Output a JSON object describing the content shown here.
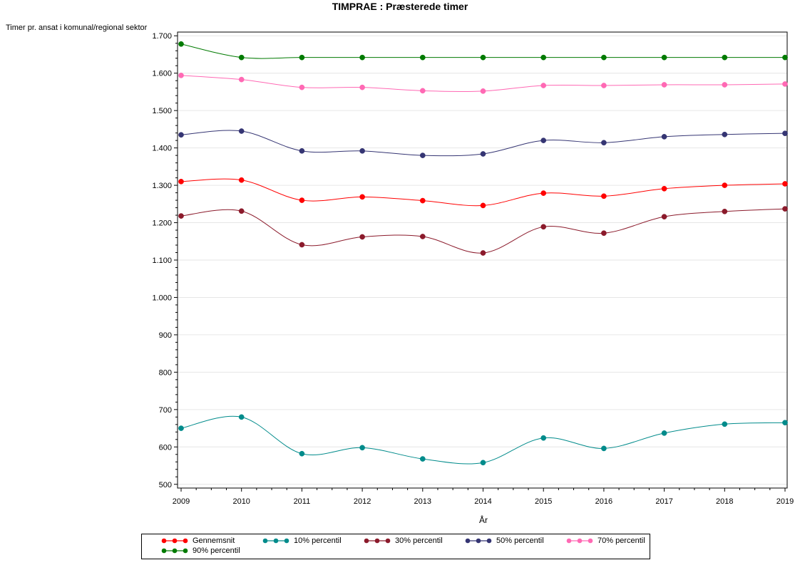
{
  "chart_data": {
    "type": "line",
    "title": "TIMPRAE : Præsterede timer",
    "xlabel": "År",
    "ylabel": "Timer pr. ansat i komunal/regional sektor",
    "x": [
      2009,
      2010,
      2011,
      2012,
      2013,
      2014,
      2015,
      2016,
      2017,
      2018,
      2019
    ],
    "xlim": [
      2009,
      2019
    ],
    "ylim": [
      490,
      1710
    ],
    "yticks": [
      500,
      600,
      700,
      800,
      900,
      1000,
      1100,
      1200,
      1300,
      1400,
      1500,
      1600,
      1700
    ],
    "ytick_labels": [
      "500",
      "600",
      "700",
      "800",
      "900",
      "1.000",
      "1.100",
      "1.200",
      "1.300",
      "1.400",
      "1.500",
      "1.600",
      "1.700"
    ],
    "grid": true,
    "legend_position": "bottom",
    "series": [
      {
        "name": "Gennemsnit",
        "color": "#ff0000",
        "values": [
          1310,
          1314,
          1260,
          1269,
          1259,
          1246,
          1279,
          1271,
          1291,
          1300,
          1304
        ]
      },
      {
        "name": "10% percentil",
        "color": "#008b8b",
        "values": [
          650,
          680,
          582,
          598,
          568,
          558,
          624,
          596,
          637,
          661,
          665
        ]
      },
      {
        "name": "30% percentil",
        "color": "#8b1a2b",
        "values": [
          1218,
          1231,
          1141,
          1162,
          1163,
          1119,
          1189,
          1172,
          1216,
          1230,
          1237
        ]
      },
      {
        "name": "50% percentil",
        "color": "#353573",
        "values": [
          1435,
          1445,
          1392,
          1392,
          1380,
          1384,
          1420,
          1414,
          1430,
          1436,
          1439
        ]
      },
      {
        "name": "70% percentil",
        "color": "#ff69b4",
        "values": [
          1594,
          1583,
          1562,
          1562,
          1553,
          1552,
          1567,
          1567,
          1569,
          1569,
          1571
        ]
      },
      {
        "name": "90% percentil",
        "color": "#007a00",
        "values": [
          1678,
          1642,
          1642,
          1642,
          1642,
          1642,
          1642,
          1642,
          1642,
          1642,
          1642
        ]
      }
    ]
  }
}
